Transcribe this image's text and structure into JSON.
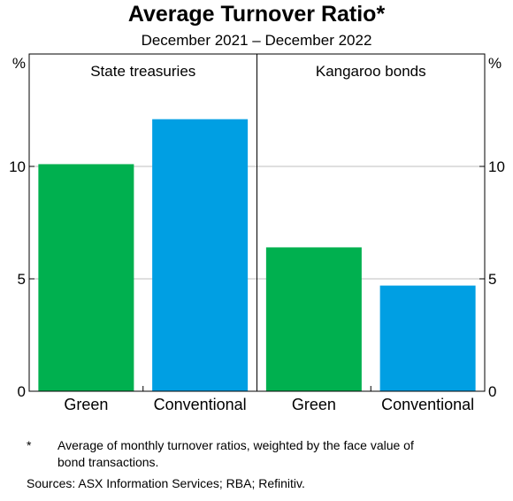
{
  "title": "Average Turnover Ratio*",
  "subtitle": "December 2021 – December 2022",
  "footnote": {
    "marker": "*",
    "text_line1": "Average of monthly turnover ratios, weighted by the face value of",
    "text_line2": "bond transactions."
  },
  "sources": "Sources: ASX Information Services; RBA; Refinitiv.",
  "colors": {
    "green": "#00b04f",
    "blue": "#009fe3",
    "grid": "#bfbfbf"
  },
  "chart_data": {
    "type": "bar",
    "y_unit_left": "%",
    "y_unit_right": "%",
    "ylim": [
      0,
      15
    ],
    "yticks": [
      0,
      5,
      10
    ],
    "grid": true,
    "panels": [
      {
        "title": "State treasuries",
        "categories": [
          "Green",
          "Conventional"
        ],
        "values": [
          10.1,
          12.1
        ]
      },
      {
        "title": "Kangaroo bonds",
        "categories": [
          "Green",
          "Conventional"
        ],
        "values": [
          6.4,
          4.7
        ]
      }
    ]
  }
}
